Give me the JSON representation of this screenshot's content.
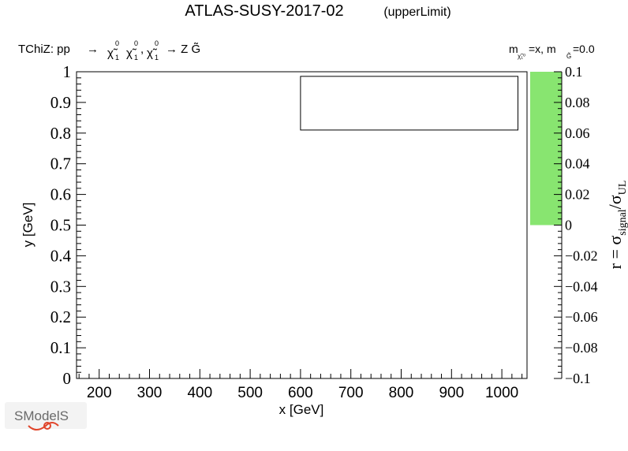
{
  "header": {
    "title": "ATLAS-SUSY-2017-02",
    "subtitle": "(upperLimit)"
  },
  "process": {
    "prefix": "TChiZ: pp",
    "arrow": "→",
    "chi": "χ̃",
    "sup": "0",
    "sub": "1",
    "comma": ",",
    "final": "→ Z G̃"
  },
  "mass_label": {
    "m": "m",
    "chi_sub": "χ̃₁⁰",
    "eq_x": "=x, m",
    "g_sub": "G̃",
    "eq_val": "=0.0"
  },
  "colors": {
    "palette_fill": "#88e570",
    "frame": "#000000"
  },
  "logo": {
    "text": "SModelS"
  },
  "chart_data": {
    "type": "heatmap",
    "title": "ATLAS-SUSY-2017-02",
    "xlabel": "x [GeV]",
    "ylabel": "y [GeV]",
    "xlim": [
      155,
      1050
    ],
    "ylim": [
      0,
      1
    ],
    "x_ticks": [
      200,
      300,
      400,
      500,
      600,
      700,
      800,
      900,
      1000
    ],
    "y_ticks": [
      "0",
      "0.1",
      "0.2",
      "0.3",
      "0.4",
      "0.5",
      "0.6",
      "0.7",
      "0.8",
      "0.9",
      "1"
    ],
    "legend_box": {
      "x0": 600,
      "x1": 1032,
      "y0": 0.81,
      "y1": 0.985
    },
    "colorbar": {
      "label": "r = σsignal/σUL",
      "ticks": [
        "0.1",
        "0.08",
        "0.06",
        "0.04",
        "0.02",
        "0",
        "−0.02",
        "−0.04",
        "−0.06",
        "−0.08",
        "−0.1"
      ],
      "range": [
        -0.1,
        0.1
      ],
      "filled_range": [
        0,
        0.1
      ]
    }
  }
}
